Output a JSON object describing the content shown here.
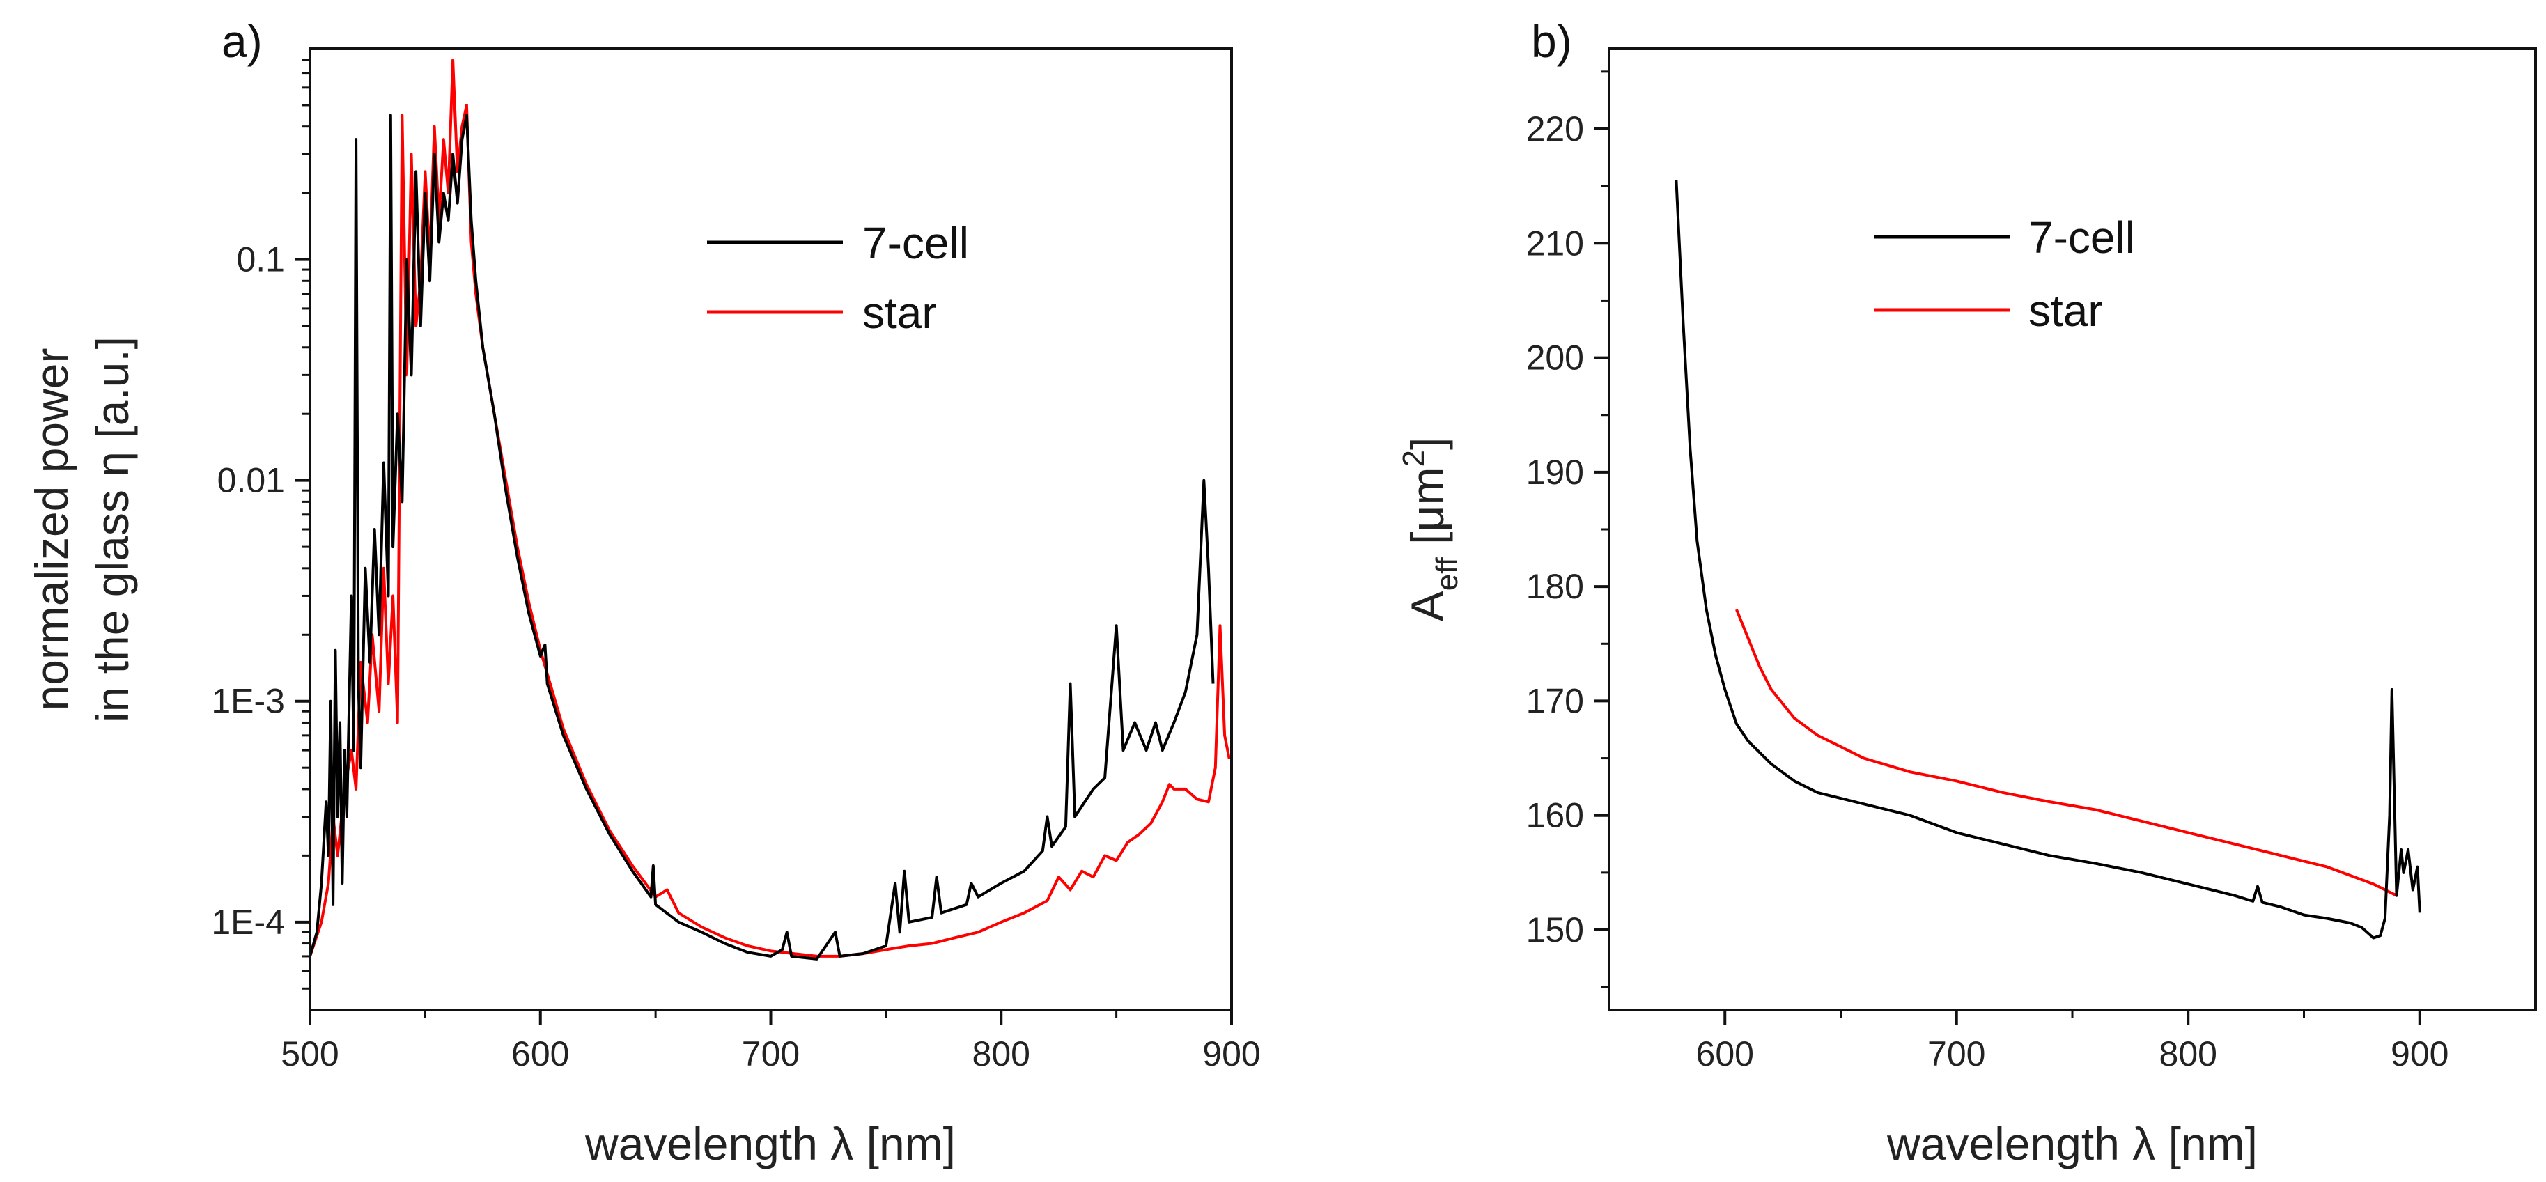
{
  "chart_data": [
    {
      "panel_label": "a)",
      "type": "line",
      "yscale": "log",
      "xlabel": "wavelength λ [nm]",
      "ylabel_line1": "normalized power",
      "ylabel_line2": "in the glass η [a.u.]",
      "xlim": [
        500,
        900
      ],
      "ylim": [
        4e-05,
        0.9
      ],
      "xticks": [
        500,
        600,
        700,
        800,
        900
      ],
      "xtick_labels": [
        "500",
        "600",
        "700",
        "800",
        "900"
      ],
      "yticks": [
        0.0001,
        0.001,
        0.01,
        0.1
      ],
      "ytick_labels": [
        "1E-4",
        "1E-3",
        "0.01",
        "0.1"
      ],
      "legend": {
        "position": "top-right",
        "entries": [
          "7-cell",
          "star"
        ]
      },
      "series": [
        {
          "name": "7-cell",
          "color": "#000000",
          "points": [
            [
              500,
              7e-05
            ],
            [
              503,
              9e-05
            ],
            [
              505,
              0.00015
            ],
            [
              507,
              0.00035
            ],
            [
              508,
              0.0002
            ],
            [
              509,
              0.001
            ],
            [
              510,
              0.00012
            ],
            [
              511,
              0.0017
            ],
            [
              512,
              0.0003
            ],
            [
              513,
              0.0008
            ],
            [
              514,
              0.00015
            ],
            [
              515,
              0.0006
            ],
            [
              516,
              0.0003
            ],
            [
              518,
              0.003
            ],
            [
              519,
              0.0006
            ],
            [
              520,
              0.35
            ],
            [
              521,
              0.0012
            ],
            [
              522,
              0.0005
            ],
            [
              524,
              0.004
            ],
            [
              526,
              0.0015
            ],
            [
              528,
              0.006
            ],
            [
              530,
              0.002
            ],
            [
              532,
              0.012
            ],
            [
              534,
              0.003
            ],
            [
              535,
              0.45
            ],
            [
              536,
              0.005
            ],
            [
              538,
              0.02
            ],
            [
              540,
              0.008
            ],
            [
              542,
              0.1
            ],
            [
              544,
              0.03
            ],
            [
              546,
              0.25
            ],
            [
              548,
              0.05
            ],
            [
              550,
              0.2
            ],
            [
              552,
              0.08
            ],
            [
              554,
              0.3
            ],
            [
              556,
              0.12
            ],
            [
              558,
              0.2
            ],
            [
              560,
              0.15
            ],
            [
              562,
              0.3
            ],
            [
              564,
              0.18
            ],
            [
              566,
              0.35
            ],
            [
              568,
              0.45
            ],
            [
              570,
              0.15
            ],
            [
              572,
              0.08
            ],
            [
              575,
              0.04
            ],
            [
              580,
              0.02
            ],
            [
              585,
              0.009
            ],
            [
              590,
              0.0045
            ],
            [
              595,
              0.0025
            ],
            [
              600,
              0.0016
            ],
            [
              602,
              0.0018
            ],
            [
              603,
              0.0012
            ],
            [
              610,
              0.0007
            ],
            [
              620,
              0.0004
            ],
            [
              630,
              0.00025
            ],
            [
              640,
              0.00017
            ],
            [
              648,
              0.00013
            ],
            [
              649,
              0.00018
            ],
            [
              650,
              0.00012
            ],
            [
              660,
              0.0001
            ],
            [
              670,
              9e-05
            ],
            [
              680,
              8e-05
            ],
            [
              690,
              7.3e-05
            ],
            [
              700,
              7e-05
            ],
            [
              705,
              7.5e-05
            ],
            [
              707,
              9e-05
            ],
            [
              709,
              7e-05
            ],
            [
              720,
              6.8e-05
            ],
            [
              728,
              9e-05
            ],
            [
              730,
              7e-05
            ],
            [
              740,
              7.2e-05
            ],
            [
              750,
              7.8e-05
            ],
            [
              754,
              0.00015
            ],
            [
              756,
              9e-05
            ],
            [
              758,
              0.00017
            ],
            [
              760,
              0.0001
            ],
            [
              770,
              0.000105
            ],
            [
              772,
              0.00016
            ],
            [
              774,
              0.00011
            ],
            [
              785,
              0.00012
            ],
            [
              787,
              0.00015
            ],
            [
              790,
              0.00013
            ],
            [
              800,
              0.00015
            ],
            [
              810,
              0.00017
            ],
            [
              818,
              0.00021
            ],
            [
              820,
              0.0003
            ],
            [
              822,
              0.00022
            ],
            [
              828,
              0.00027
            ],
            [
              830,
              0.0012
            ],
            [
              832,
              0.0003
            ],
            [
              840,
              0.0004
            ],
            [
              845,
              0.00045
            ],
            [
              850,
              0.0022
            ],
            [
              853,
              0.0006
            ],
            [
              858,
              0.0008
            ],
            [
              863,
              0.0006
            ],
            [
              867,
              0.0008
            ],
            [
              870,
              0.0006
            ],
            [
              875,
              0.0008
            ],
            [
              880,
              0.0011
            ],
            [
              885,
              0.002
            ],
            [
              888,
              0.01
            ],
            [
              890,
              0.004
            ],
            [
              892,
              0.0012
            ]
          ]
        },
        {
          "name": "star",
          "color": "#ff0000",
          "points": [
            [
              500,
              7e-05
            ],
            [
              505,
              0.0001
            ],
            [
              508,
              0.00015
            ],
            [
              510,
              0.0003
            ],
            [
              512,
              0.0002
            ],
            [
              515,
              0.0004
            ],
            [
              518,
              0.0006
            ],
            [
              520,
              0.0004
            ],
            [
              522,
              0.0015
            ],
            [
              525,
              0.0008
            ],
            [
              527,
              0.002
            ],
            [
              530,
              0.0009
            ],
            [
              532,
              0.004
            ],
            [
              534,
              0.0012
            ],
            [
              536,
              0.003
            ],
            [
              538,
              0.0008
            ],
            [
              540,
              0.45
            ],
            [
              542,
              0.03
            ],
            [
              544,
              0.3
            ],
            [
              546,
              0.05
            ],
            [
              548,
              0.08
            ],
            [
              550,
              0.25
            ],
            [
              552,
              0.1
            ],
            [
              554,
              0.4
            ],
            [
              556,
              0.15
            ],
            [
              558,
              0.35
            ],
            [
              560,
              0.2
            ],
            [
              562,
              0.8
            ],
            [
              564,
              0.25
            ],
            [
              566,
              0.4
            ],
            [
              568,
              0.5
            ],
            [
              570,
              0.12
            ],
            [
              572,
              0.07
            ],
            [
              575,
              0.04
            ],
            [
              580,
              0.02
            ],
            [
              585,
              0.01
            ],
            [
              590,
              0.005
            ],
            [
              595,
              0.0028
            ],
            [
              600,
              0.0017
            ],
            [
              610,
              0.00075
            ],
            [
              620,
              0.00042
            ],
            [
              630,
              0.00026
            ],
            [
              640,
              0.00018
            ],
            [
              650,
              0.00013
            ],
            [
              655,
              0.00014
            ],
            [
              660,
              0.00011
            ],
            [
              670,
              9.5e-05
            ],
            [
              680,
              8.5e-05
            ],
            [
              690,
              7.8e-05
            ],
            [
              700,
              7.4e-05
            ],
            [
              710,
              7.2e-05
            ],
            [
              720,
              7e-05
            ],
            [
              730,
              7e-05
            ],
            [
              740,
              7.2e-05
            ],
            [
              750,
              7.5e-05
            ],
            [
              760,
              7.8e-05
            ],
            [
              770,
              8e-05
            ],
            [
              780,
              8.5e-05
            ],
            [
              790,
              9e-05
            ],
            [
              800,
              0.0001
            ],
            [
              810,
              0.00011
            ],
            [
              820,
              0.000125
            ],
            [
              825,
              0.00016
            ],
            [
              830,
              0.00014
            ],
            [
              835,
              0.00017
            ],
            [
              840,
              0.00016
            ],
            [
              845,
              0.0002
            ],
            [
              850,
              0.00019
            ],
            [
              855,
              0.00023
            ],
            [
              860,
              0.00025
            ],
            [
              865,
              0.00028
            ],
            [
              870,
              0.00035
            ],
            [
              873,
              0.00042
            ],
            [
              875,
              0.0004
            ],
            [
              880,
              0.0004
            ],
            [
              885,
              0.00036
            ],
            [
              890,
              0.00035
            ],
            [
              893,
              0.0005
            ],
            [
              895,
              0.0022
            ],
            [
              897,
              0.0007
            ],
            [
              899,
              0.00055
            ]
          ]
        }
      ]
    },
    {
      "panel_label": "b)",
      "type": "line",
      "xlabel": "wavelength λ [nm]",
      "ylabel_base": "A",
      "ylabel_sub": "eff",
      "ylabel_unit": " [μm",
      "ylabel_sup": "2",
      "ylabel_close": "]",
      "xlim": [
        550,
        950
      ],
      "ylim": [
        143,
        227
      ],
      "xticks": [
        600,
        700,
        800,
        900
      ],
      "xtick_labels": [
        "600",
        "700",
        "800",
        "900"
      ],
      "yticks": [
        150,
        160,
        170,
        180,
        190,
        200,
        210,
        220
      ],
      "ytick_labels": [
        "150",
        "160",
        "170",
        "180",
        "190",
        "200",
        "210",
        "220"
      ],
      "legend": {
        "position": "top-right",
        "entries": [
          "7-cell",
          "star"
        ]
      },
      "series": [
        {
          "name": "7-cell",
          "color": "#000000",
          "points": [
            [
              579,
              215.5
            ],
            [
              582,
              203
            ],
            [
              585,
              192
            ],
            [
              588,
              184
            ],
            [
              592,
              178
            ],
            [
              596,
              174
            ],
            [
              600,
              171
            ],
            [
              605,
              168
            ],
            [
              610,
              166.5
            ],
            [
              620,
              164.5
            ],
            [
              630,
              163
            ],
            [
              640,
              162
            ],
            [
              660,
              161
            ],
            [
              680,
              160
            ],
            [
              700,
              158.5
            ],
            [
              720,
              157.5
            ],
            [
              740,
              156.5
            ],
            [
              760,
              155.8
            ],
            [
              780,
              155
            ],
            [
              800,
              154
            ],
            [
              820,
              153
            ],
            [
              828,
              152.5
            ],
            [
              830,
              153.8
            ],
            [
              832,
              152.4
            ],
            [
              840,
              152
            ],
            [
              850,
              151.3
            ],
            [
              860,
              151
            ],
            [
              870,
              150.6
            ],
            [
              875,
              150.2
            ],
            [
              880,
              149.3
            ],
            [
              883,
              149.5
            ],
            [
              885,
              151
            ],
            [
              887,
              160
            ],
            [
              888,
              171
            ],
            [
              889,
              162
            ],
            [
              890,
              153
            ],
            [
              892,
              157
            ],
            [
              893,
              155
            ],
            [
              895,
              157
            ],
            [
              897,
              153.5
            ],
            [
              899,
              155.5
            ],
            [
              900,
              151.5
            ]
          ]
        },
        {
          "name": "star",
          "color": "#ff0000",
          "points": [
            [
              605,
              178
            ],
            [
              610,
              175.5
            ],
            [
              615,
              173
            ],
            [
              620,
              171
            ],
            [
              630,
              168.5
            ],
            [
              640,
              167
            ],
            [
              650,
              166
            ],
            [
              660,
              165
            ],
            [
              680,
              163.8
            ],
            [
              700,
              163
            ],
            [
              720,
              162
            ],
            [
              740,
              161.2
            ],
            [
              760,
              160.5
            ],
            [
              780,
              159.5
            ],
            [
              800,
              158.5
            ],
            [
              820,
              157.5
            ],
            [
              840,
              156.5
            ],
            [
              860,
              155.5
            ],
            [
              880,
              154
            ],
            [
              890,
              153
            ]
          ]
        }
      ]
    }
  ]
}
